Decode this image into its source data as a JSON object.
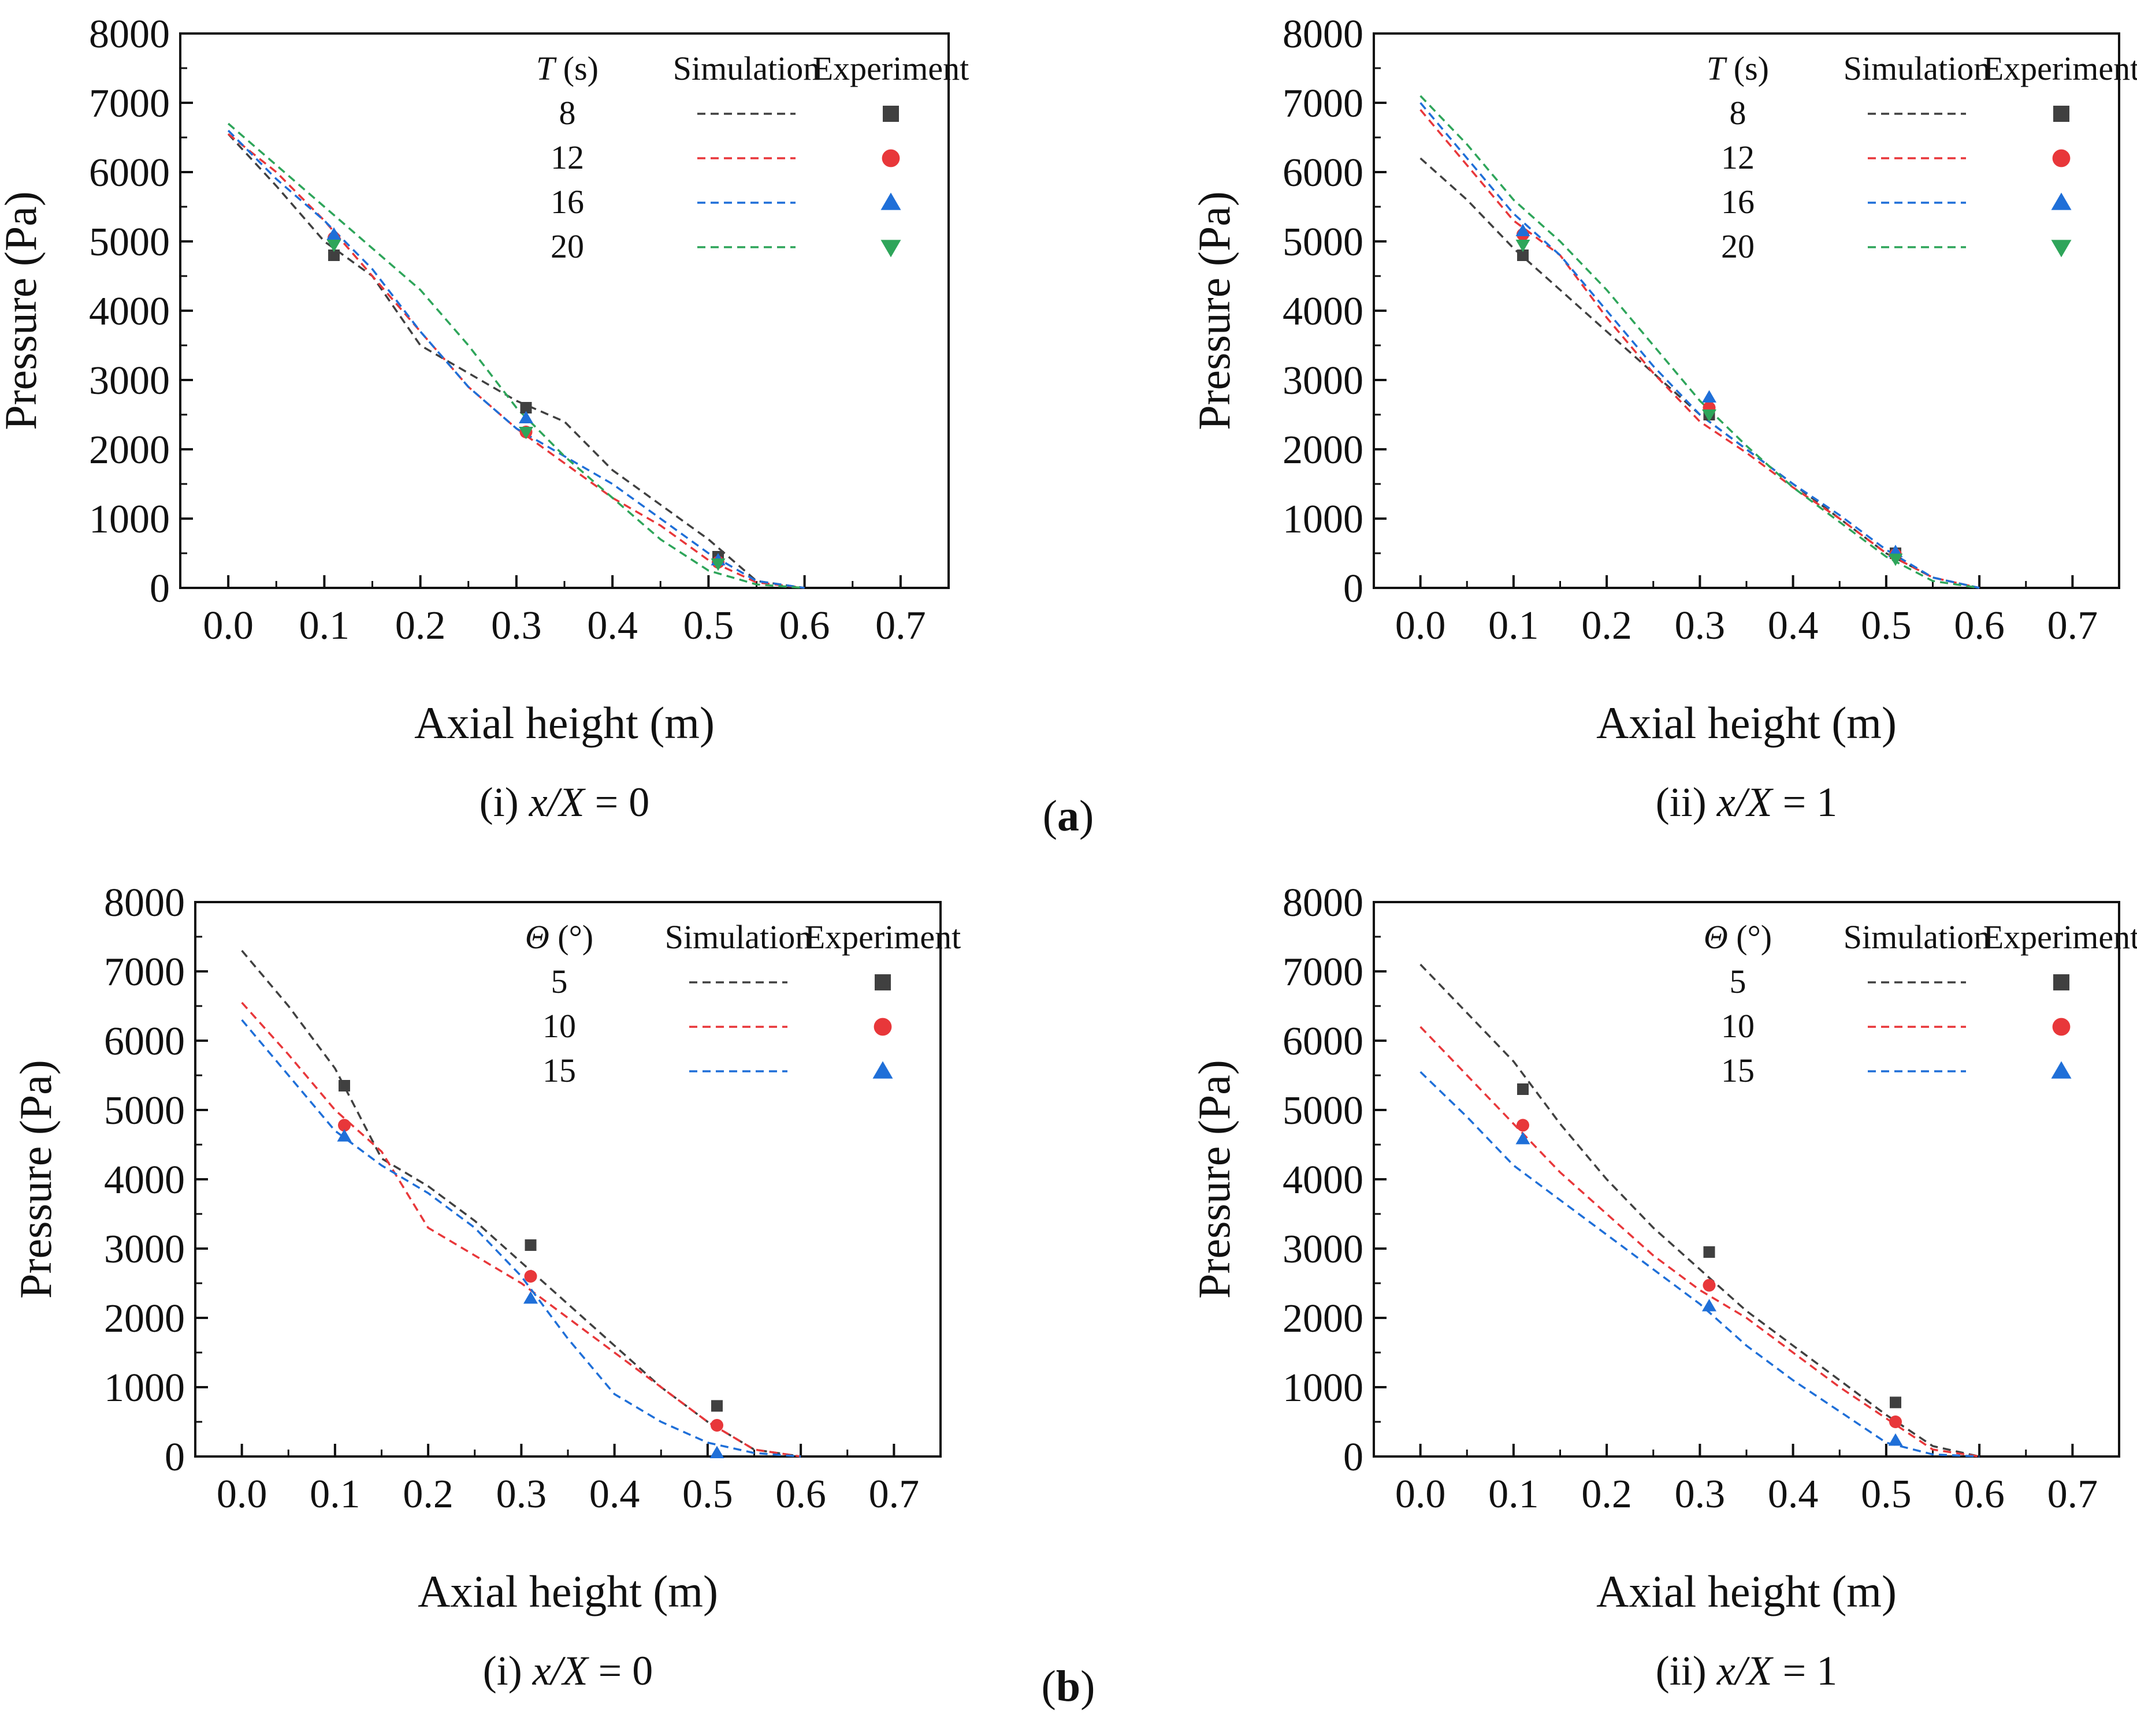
{
  "figure": {
    "part_labels": [
      "(a)",
      "(b)"
    ],
    "colors": {
      "black": "#404040",
      "red": "#e8373a",
      "blue": "#1f6fd8",
      "green": "#2ea55a"
    }
  },
  "chart_data": [
    {
      "id": "a-i",
      "part": "a",
      "type": "line",
      "subtitle": "(i) x/X = 0",
      "subtitle_parts": [
        "(i) ",
        "x/X",
        " = 0"
      ],
      "xlabel": "Axial height (m)",
      "ylabel": "Pressure (Pa)",
      "xlim": [
        -0.05,
        0.75
      ],
      "ylim": [
        0,
        8000
      ],
      "xticks": [
        "0.0",
        "0.1",
        "0.2",
        "0.3",
        "0.4",
        "0.5",
        "0.6",
        "0.7"
      ],
      "yticks": [
        "0",
        "1000",
        "2000",
        "3000",
        "4000",
        "5000",
        "6000",
        "7000",
        "8000"
      ],
      "legend": {
        "param_italic": "T",
        "param_unit": " (s)",
        "sim_label": "Simulation",
        "exp_label": "Experiment"
      },
      "series": [
        {
          "name": "8",
          "color": "#404040",
          "marker": "square",
          "sim_x": [
            0,
            0.05,
            0.1,
            0.15,
            0.2,
            0.25,
            0.3,
            0.35,
            0.4,
            0.45,
            0.5,
            0.55,
            0.6
          ],
          "sim_y": [
            6550,
            5800,
            5000,
            4500,
            3500,
            3100,
            2700,
            2400,
            1700,
            1200,
            700,
            100,
            0
          ],
          "exp_x": [
            0.11,
            0.31,
            0.51
          ],
          "exp_y": [
            4800,
            2600,
            450
          ]
        },
        {
          "name": "12",
          "color": "#e8373a",
          "marker": "circle",
          "sim_x": [
            0,
            0.05,
            0.1,
            0.15,
            0.2,
            0.25,
            0.3,
            0.35,
            0.4,
            0.45,
            0.5,
            0.55,
            0.6
          ],
          "sim_y": [
            6550,
            6000,
            5300,
            4500,
            3700,
            2900,
            2300,
            1800,
            1300,
            900,
            400,
            80,
            0
          ],
          "exp_x": [
            0.11,
            0.31,
            0.51
          ],
          "exp_y": [
            5050,
            2250,
            370
          ]
        },
        {
          "name": "16",
          "color": "#1f6fd8",
          "marker": "triangle-up",
          "sim_x": [
            0,
            0.05,
            0.1,
            0.15,
            0.2,
            0.25,
            0.3,
            0.35,
            0.4,
            0.45,
            0.5,
            0.55,
            0.6
          ],
          "sim_y": [
            6600,
            5900,
            5300,
            4600,
            3700,
            2900,
            2300,
            1900,
            1500,
            1000,
            500,
            100,
            0
          ],
          "exp_x": [
            0.11,
            0.31,
            0.51
          ],
          "exp_y": [
            5100,
            2450,
            400
          ]
        },
        {
          "name": "20",
          "color": "#2ea55a",
          "marker": "triangle-down",
          "sim_x": [
            0,
            0.05,
            0.1,
            0.15,
            0.2,
            0.25,
            0.3,
            0.35,
            0.4,
            0.45,
            0.5,
            0.55,
            0.6
          ],
          "sim_y": [
            6700,
            6100,
            5500,
            4900,
            4300,
            3500,
            2600,
            1900,
            1300,
            700,
            250,
            50,
            0
          ],
          "exp_x": [
            0.11,
            0.31,
            0.51
          ],
          "exp_y": [
            4950,
            2250,
            350
          ]
        }
      ]
    },
    {
      "id": "a-ii",
      "part": "a",
      "type": "line",
      "subtitle": "(ii) x/X = 1",
      "subtitle_parts": [
        "(ii) ",
        "x/X",
        " = 1"
      ],
      "xlabel": "Axial height (m)",
      "ylabel": "Pressure (Pa)",
      "xlim": [
        -0.05,
        0.75
      ],
      "ylim": [
        0,
        8000
      ],
      "xticks": [
        "0.0",
        "0.1",
        "0.2",
        "0.3",
        "0.4",
        "0.5",
        "0.6",
        "0.7"
      ],
      "yticks": [
        "0",
        "1000",
        "2000",
        "3000",
        "4000",
        "5000",
        "6000",
        "7000",
        "8000"
      ],
      "legend": {
        "param_italic": "T",
        "param_unit": " (s)",
        "sim_label": "Simulation",
        "exp_label": "Experiment"
      },
      "series": [
        {
          "name": "8",
          "color": "#404040",
          "marker": "square",
          "sim_x": [
            0,
            0.05,
            0.1,
            0.15,
            0.2,
            0.25,
            0.3,
            0.35,
            0.4,
            0.45,
            0.5,
            0.55,
            0.6
          ],
          "sim_y": [
            6200,
            5600,
            4900,
            4300,
            3700,
            3100,
            2500,
            2000,
            1500,
            1000,
            500,
            150,
            0
          ],
          "exp_x": [
            0.11,
            0.31,
            0.51
          ],
          "exp_y": [
            4800,
            2500,
            500
          ]
        },
        {
          "name": "12",
          "color": "#e8373a",
          "marker": "circle",
          "sim_x": [
            0,
            0.05,
            0.1,
            0.15,
            0.2,
            0.25,
            0.3,
            0.35,
            0.4,
            0.45,
            0.5,
            0.55,
            0.6
          ],
          "sim_y": [
            6900,
            6100,
            5300,
            4800,
            3900,
            3100,
            2400,
            1950,
            1450,
            1000,
            500,
            150,
            0
          ],
          "exp_x": [
            0.11,
            0.31,
            0.51
          ],
          "exp_y": [
            5100,
            2600,
            480
          ]
        },
        {
          "name": "16",
          "color": "#1f6fd8",
          "marker": "triangle-up",
          "sim_x": [
            0,
            0.05,
            0.1,
            0.15,
            0.2,
            0.25,
            0.3,
            0.35,
            0.4,
            0.45,
            0.5,
            0.55,
            0.6
          ],
          "sim_y": [
            7000,
            6200,
            5400,
            4800,
            4000,
            3200,
            2500,
            2000,
            1500,
            1050,
            550,
            150,
            0
          ],
          "exp_x": [
            0.11,
            0.31,
            0.51
          ],
          "exp_y": [
            5150,
            2750,
            520
          ]
        },
        {
          "name": "20",
          "color": "#2ea55a",
          "marker": "triangle-down",
          "sim_x": [
            0,
            0.05,
            0.1,
            0.15,
            0.2,
            0.25,
            0.3,
            0.35,
            0.4,
            0.45,
            0.5,
            0.55,
            0.6
          ],
          "sim_y": [
            7100,
            6400,
            5600,
            5000,
            4300,
            3500,
            2700,
            2050,
            1450,
            950,
            450,
            100,
            0
          ],
          "exp_x": [
            0.11,
            0.31,
            0.51
          ],
          "exp_y": [
            4950,
            2500,
            420
          ]
        }
      ]
    },
    {
      "id": "b-i",
      "part": "b",
      "type": "line",
      "subtitle": "(i) x/X = 0",
      "subtitle_parts": [
        "(i) ",
        "x/X",
        " = 0"
      ],
      "xlabel": "Axial height (m)",
      "ylabel": "Pressure (Pa)",
      "xlim": [
        -0.05,
        0.75
      ],
      "ylim": [
        0,
        8000
      ],
      "xticks": [
        "0.0",
        "0.1",
        "0.2",
        "0.3",
        "0.4",
        "0.5",
        "0.6",
        "0.7"
      ],
      "yticks": [
        "0",
        "1000",
        "2000",
        "3000",
        "4000",
        "5000",
        "6000",
        "7000",
        "8000"
      ],
      "legend": {
        "param_italic": "Θ",
        "param_unit": " (°)",
        "sim_label": "Simulation",
        "exp_label": "Experiment"
      },
      "series": [
        {
          "name": "5",
          "color": "#404040",
          "marker": "square",
          "sim_x": [
            0,
            0.05,
            0.1,
            0.15,
            0.2,
            0.25,
            0.3,
            0.35,
            0.4,
            0.45,
            0.5,
            0.55,
            0.6
          ],
          "sim_y": [
            7300,
            6500,
            5600,
            4300,
            3900,
            3400,
            2800,
            2200,
            1600,
            1000,
            500,
            100,
            0
          ],
          "exp_x": [
            0.11,
            0.31,
            0.51
          ],
          "exp_y": [
            5350,
            3050,
            730
          ]
        },
        {
          "name": "10",
          "color": "#e8373a",
          "marker": "circle",
          "sim_x": [
            0,
            0.05,
            0.1,
            0.15,
            0.2,
            0.25,
            0.3,
            0.35,
            0.4,
            0.45,
            0.5,
            0.55,
            0.6
          ],
          "sim_y": [
            6550,
            5800,
            5000,
            4400,
            3300,
            2900,
            2500,
            2000,
            1500,
            1000,
            500,
            100,
            0
          ],
          "exp_x": [
            0.11,
            0.31,
            0.51
          ],
          "exp_y": [
            4780,
            2600,
            450
          ]
        },
        {
          "name": "15",
          "color": "#1f6fd8",
          "marker": "triangle-up",
          "sim_x": [
            0,
            0.05,
            0.1,
            0.15,
            0.2,
            0.25,
            0.3,
            0.35,
            0.4,
            0.45,
            0.5,
            0.55,
            0.6
          ],
          "sim_y": [
            6300,
            5500,
            4700,
            4200,
            3800,
            3300,
            2600,
            1700,
            900,
            500,
            200,
            50,
            0
          ],
          "exp_x": [
            0.11,
            0.31,
            0.51
          ],
          "exp_y": [
            4620,
            2280,
            50
          ]
        }
      ]
    },
    {
      "id": "b-ii",
      "part": "b",
      "type": "line",
      "subtitle": "(ii) x/X = 1",
      "subtitle_parts": [
        "(ii) ",
        "x/X",
        " = 1"
      ],
      "xlabel": "Axial height (m)",
      "ylabel": "Pressure (Pa)",
      "xlim": [
        -0.05,
        0.75
      ],
      "ylim": [
        0,
        8000
      ],
      "xticks": [
        "0.0",
        "0.1",
        "0.2",
        "0.3",
        "0.4",
        "0.5",
        "0.6",
        "0.7"
      ],
      "yticks": [
        "0",
        "1000",
        "2000",
        "3000",
        "4000",
        "5000",
        "6000",
        "7000",
        "8000"
      ],
      "legend": {
        "param_italic": "Θ",
        "param_unit": " (°)",
        "sim_label": "Simulation",
        "exp_label": "Experiment"
      },
      "series": [
        {
          "name": "5",
          "color": "#404040",
          "marker": "square",
          "sim_x": [
            0,
            0.05,
            0.1,
            0.15,
            0.2,
            0.25,
            0.3,
            0.35,
            0.4,
            0.45,
            0.5,
            0.55,
            0.6
          ],
          "sim_y": [
            7100,
            6400,
            5700,
            4800,
            4000,
            3300,
            2700,
            2100,
            1600,
            1100,
            600,
            150,
            0
          ],
          "exp_x": [
            0.11,
            0.31,
            0.51
          ],
          "exp_y": [
            5300,
            2950,
            780
          ]
        },
        {
          "name": "10",
          "color": "#e8373a",
          "marker": "circle",
          "sim_x": [
            0,
            0.05,
            0.1,
            0.15,
            0.2,
            0.25,
            0.3,
            0.35,
            0.4,
            0.45,
            0.5,
            0.55,
            0.6
          ],
          "sim_y": [
            6200,
            5500,
            4800,
            4100,
            3500,
            2900,
            2400,
            2000,
            1500,
            1000,
            550,
            100,
            0
          ],
          "exp_x": [
            0.11,
            0.31,
            0.51
          ],
          "exp_y": [
            4780,
            2470,
            500
          ]
        },
        {
          "name": "15",
          "color": "#1f6fd8",
          "marker": "triangle-up",
          "sim_x": [
            0,
            0.05,
            0.1,
            0.15,
            0.2,
            0.25,
            0.3,
            0.35,
            0.4,
            0.45,
            0.5,
            0.55,
            0.6
          ],
          "sim_y": [
            5550,
            4900,
            4200,
            3700,
            3200,
            2700,
            2200,
            1600,
            1100,
            650,
            200,
            30,
            0
          ],
          "exp_x": [
            0.11,
            0.31,
            0.51
          ],
          "exp_y": [
            4580,
            2170,
            230
          ]
        }
      ]
    }
  ]
}
